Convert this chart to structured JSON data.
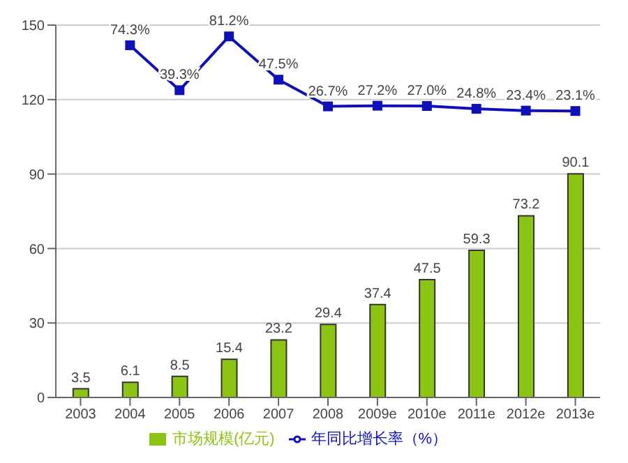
{
  "chart_data": {
    "type": "bar",
    "categories": [
      "2003",
      "2004",
      "2005",
      "2006",
      "2007",
      "2008",
      "2009e",
      "2010e",
      "2011e",
      "2012e",
      "2013e"
    ],
    "series": [
      {
        "name": "市场规模(亿元)",
        "color": "#8cc414",
        "values": [
          3.5,
          6.1,
          8.5,
          15.4,
          23.2,
          29.4,
          37.4,
          47.5,
          59.3,
          73.2,
          90.1
        ],
        "value_labels": [
          "3.5",
          "6.1",
          "8.5",
          "15.4",
          "23.2",
          "29.4",
          "37.4",
          "47.5",
          "59.3",
          "73.2",
          "90.1"
        ]
      },
      {
        "name": "年同比增长率（%）",
        "type": "line",
        "axis": "y2",
        "color": "#1010b8",
        "values": [
          null,
          74.3,
          39.3,
          81.2,
          47.5,
          26.7,
          27.2,
          27.0,
          24.8,
          23.4,
          23.1
        ],
        "value_labels": [
          null,
          "74.3%",
          "39.3%",
          "81.2%",
          "47.5%",
          "26.7%",
          "27.2%",
          "27.0%",
          "24.8%",
          "23.4%",
          "23.1%"
        ]
      }
    ],
    "ylim": [
      0,
      150
    ],
    "yticks": [
      0,
      30,
      60,
      90,
      120,
      150
    ],
    "y2lim": [
      -200,
      90
    ],
    "grid": "y",
    "legend": "bottom",
    "marker": "square"
  }
}
